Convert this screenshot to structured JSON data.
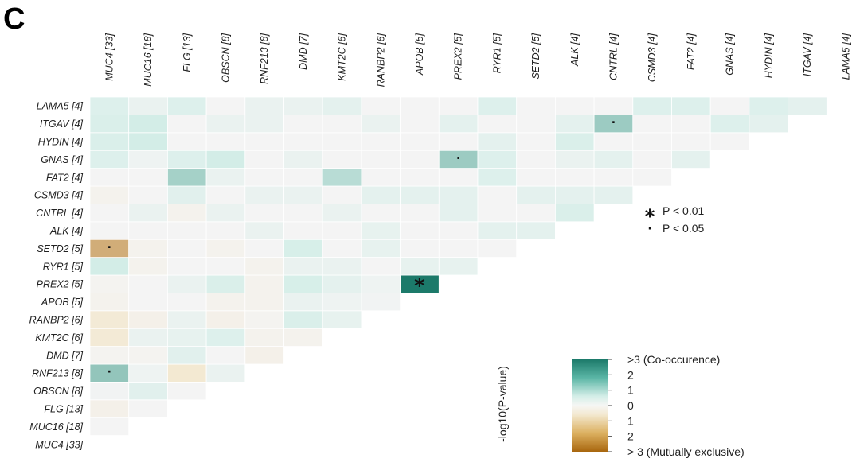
{
  "panel_label": "C",
  "chart_data": {
    "type": "heatmap",
    "genes": [
      "MUC4 [33]",
      "MUC16 [18]",
      "FLG [13]",
      "OBSCN [8]",
      "RNF213 [8]",
      "DMD [7]",
      "KMT2C [6]",
      "RANBP2 [6]",
      "APOB [5]",
      "PREX2 [5]",
      "RYR1 [5]",
      "SETD2 [5]",
      "ALK [4]",
      "CNTRL [4]",
      "CSMD3 [4]",
      "FAT2 [4]",
      "GNAS [4]",
      "HYDIN [4]",
      "ITGAV [4]",
      "LAMA5 [4]"
    ],
    "value_note": "signed -log10(P-value): positive = co-occurrence, negative = mutually exclusive",
    "values": [
      [
        0
      ],
      [
        0,
        0
      ],
      [
        -0.3,
        0,
        0
      ],
      [
        0.1,
        0.6,
        0,
        0
      ],
      [
        1.7,
        0.2,
        -0.9,
        0.3,
        0
      ],
      [
        -0.1,
        -0.1,
        0.6,
        0,
        -0.3,
        0
      ],
      [
        -0.8,
        0.3,
        0.4,
        0.7,
        -0.2,
        -0.2,
        0
      ],
      [
        -0.8,
        -0.3,
        0.3,
        -0.3,
        -0.1,
        0.8,
        0.4,
        0
      ],
      [
        -0.2,
        0,
        0,
        -0.2,
        -0.2,
        0.3,
        0.2,
        0.1,
        0
      ],
      [
        -0.1,
        0,
        0.3,
        0.8,
        -0.2,
        0.9,
        0.5,
        0.2,
        3.2,
        0
      ],
      [
        1.0,
        -0.2,
        0,
        0,
        -0.2,
        0.3,
        0.3,
        0,
        0.4,
        0.4,
        0
      ],
      [
        -1.9,
        -0.2,
        0,
        -0.2,
        0,
        0.9,
        0,
        0.4,
        0,
        0,
        0,
        0
      ],
      [
        0,
        0,
        0,
        0,
        0.3,
        0,
        0,
        0.4,
        0,
        0,
        0.5,
        0.5,
        0
      ],
      [
        0,
        0.3,
        -0.2,
        0.3,
        0,
        0,
        0.3,
        0,
        0,
        0.5,
        0,
        0,
        0.8,
        0
      ],
      [
        -0.2,
        0,
        0.6,
        0,
        0.3,
        0.3,
        0,
        0.5,
        0.5,
        0.5,
        0,
        0.5,
        0.5,
        0.5,
        0
      ],
      [
        0,
        0,
        1.5,
        0.3,
        0,
        0,
        1.3,
        0,
        0,
        0,
        0.7,
        0,
        0,
        0,
        0,
        0
      ],
      [
        0.7,
        0.2,
        0.7,
        1.0,
        0,
        0.3,
        0,
        0,
        0,
        1.6,
        0.7,
        0,
        0.3,
        0.5,
        0,
        0.5,
        0
      ],
      [
        0.8,
        1.0,
        0,
        0,
        0,
        0,
        0,
        0,
        0,
        0,
        0.5,
        0,
        0.8,
        0,
        0,
        0,
        0,
        0
      ],
      [
        0.8,
        1.0,
        0,
        0.3,
        0.3,
        0,
        0,
        0.3,
        0,
        0.5,
        0,
        0,
        0.5,
        1.6,
        0,
        0,
        0.7,
        0.5,
        0
      ],
      [
        0.7,
        0.3,
        0.7,
        0,
        0.3,
        0.3,
        0.5,
        0,
        0,
        0,
        0.7,
        0,
        0,
        0,
        0.7,
        0.7,
        0,
        0.7,
        0.5,
        0
      ]
    ],
    "marks": [
      {
        "row": "RNF213 [8]",
        "col": "MUC4 [33]",
        "symbol": "·"
      },
      {
        "row": "SETD2 [5]",
        "col": "MUC4 [33]",
        "symbol": "·"
      },
      {
        "row": "PREX2 [5]",
        "col": "APOB [5]",
        "symbol": "*"
      },
      {
        "row": "GNAS [4]",
        "col": "PREX2 [5]",
        "symbol": "·"
      },
      {
        "row": "ITGAV [4]",
        "col": "CNTRL [4]",
        "symbol": "·"
      }
    ],
    "significance_legend": [
      {
        "symbol": "*",
        "label": "P < 0.01"
      },
      {
        "symbol": "·",
        "label": "P < 0.05"
      }
    ],
    "colorbar": {
      "range": [
        -3,
        3
      ],
      "title": "-log10(P-value)",
      "ticks": [
        {
          "value": 3,
          "label": ">3 (Co-occurence)"
        },
        {
          "value": 2,
          "label": "2"
        },
        {
          "value": 1,
          "label": "1"
        },
        {
          "value": 0,
          "label": "0"
        },
        {
          "value": -1,
          "label": "1"
        },
        {
          "value": -2,
          "label": "2"
        },
        {
          "value": -3,
          "label": "> 3 (Mutually exclusive)"
        }
      ]
    },
    "colors": {
      "co_strong": "#1c7a6a",
      "co_light": "#d4eee8",
      "neutral": "#f4f4f4",
      "ex_light": "#f3e8cf",
      "ex_strong": "#a8660e"
    }
  }
}
